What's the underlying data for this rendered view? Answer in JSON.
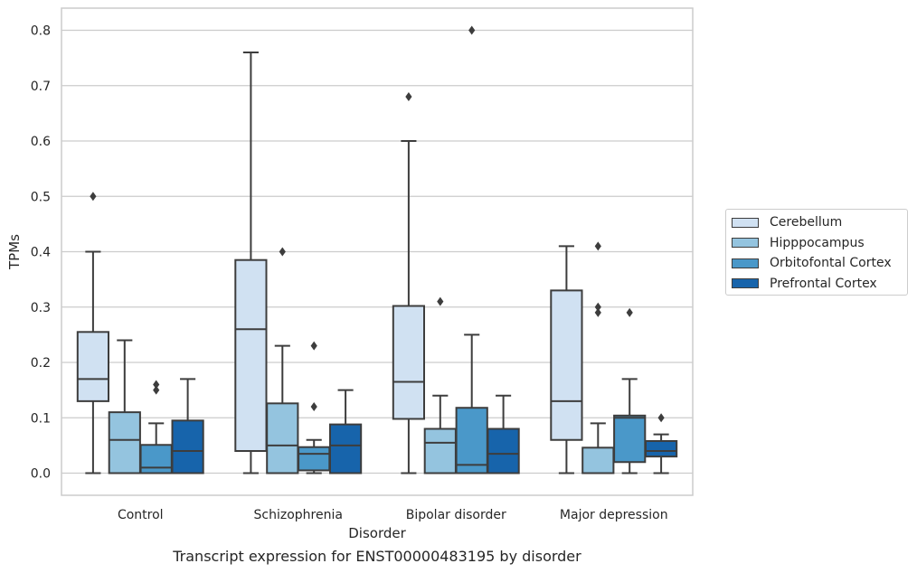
{
  "caption": "Transcript expression for ENST00000483195 by disorder",
  "chart_data": {
    "type": "box",
    "xlabel": "Disorder",
    "ylabel": "TPMs",
    "ylim": [
      -0.04,
      0.84
    ],
    "yticks": [
      "0.0",
      "0.1",
      "0.2",
      "0.3",
      "0.4",
      "0.5",
      "0.6",
      "0.7",
      "0.8"
    ],
    "grid": "horizontal",
    "legend_position": "right",
    "categories": [
      "Control",
      "Schizophrenia",
      "Bipolar disorder",
      "Major depression"
    ],
    "series": [
      {
        "name": "Cerebellum",
        "color": "#d0e1f2",
        "boxes": [
          {
            "whisker_low": 0.0,
            "q1": 0.13,
            "median": 0.17,
            "q3": 0.255,
            "whisker_high": 0.4,
            "outliers": [
              0.5
            ]
          },
          {
            "whisker_low": 0.0,
            "q1": 0.04,
            "median": 0.26,
            "q3": 0.385,
            "whisker_high": 0.76,
            "outliers": []
          },
          {
            "whisker_low": 0.0,
            "q1": 0.098,
            "median": 0.165,
            "q3": 0.302,
            "whisker_high": 0.6,
            "outliers": [
              0.68
            ]
          },
          {
            "whisker_low": 0.0,
            "q1": 0.06,
            "median": 0.13,
            "q3": 0.33,
            "whisker_high": 0.41,
            "outliers": []
          }
        ]
      },
      {
        "name": "Hipppocampus",
        "color": "#94c4df",
        "boxes": [
          {
            "whisker_low": 0.0,
            "q1": 0.0,
            "median": 0.06,
            "q3": 0.11,
            "whisker_high": 0.24,
            "outliers": []
          },
          {
            "whisker_low": 0.0,
            "q1": 0.0,
            "median": 0.05,
            "q3": 0.126,
            "whisker_high": 0.23,
            "outliers": [
              0.4
            ]
          },
          {
            "whisker_low": 0.0,
            "q1": 0.0,
            "median": 0.055,
            "q3": 0.08,
            "whisker_high": 0.14,
            "outliers": [
              0.31
            ]
          },
          {
            "whisker_low": 0.0,
            "q1": 0.0,
            "median": 0.0,
            "q3": 0.046,
            "whisker_high": 0.09,
            "outliers": [
              0.29,
              0.3,
              0.41
            ]
          }
        ]
      },
      {
        "name": "Orbitofontal Cortex",
        "color": "#4a98c9",
        "boxes": [
          {
            "whisker_low": 0.0,
            "q1": 0.0,
            "median": 0.01,
            "q3": 0.051,
            "whisker_high": 0.09,
            "outliers": [
              0.15,
              0.16
            ]
          },
          {
            "whisker_low": 0.0,
            "q1": 0.005,
            "median": 0.035,
            "q3": 0.047,
            "whisker_high": 0.06,
            "outliers": [
              0.12,
              0.23
            ]
          },
          {
            "whisker_low": 0.0,
            "q1": 0.0,
            "median": 0.015,
            "q3": 0.118,
            "whisker_high": 0.25,
            "outliers": [
              0.8
            ]
          },
          {
            "whisker_low": 0.0,
            "q1": 0.02,
            "median": 0.1,
            "q3": 0.104,
            "whisker_high": 0.17,
            "outliers": [
              0.29
            ]
          }
        ]
      },
      {
        "name": "Prefrontal Cortex",
        "color": "#1764ab",
        "boxes": [
          {
            "whisker_low": 0.0,
            "q1": 0.0,
            "median": 0.04,
            "q3": 0.095,
            "whisker_high": 0.17,
            "outliers": []
          },
          {
            "whisker_low": 0.0,
            "q1": 0.0,
            "median": 0.05,
            "q3": 0.088,
            "whisker_high": 0.15,
            "outliers": []
          },
          {
            "whisker_low": 0.0,
            "q1": 0.0,
            "median": 0.035,
            "q3": 0.08,
            "whisker_high": 0.14,
            "outliers": []
          },
          {
            "whisker_low": 0.0,
            "q1": 0.03,
            "median": 0.04,
            "q3": 0.058,
            "whisker_high": 0.07,
            "outliers": [
              0.1
            ]
          }
        ]
      }
    ]
  }
}
